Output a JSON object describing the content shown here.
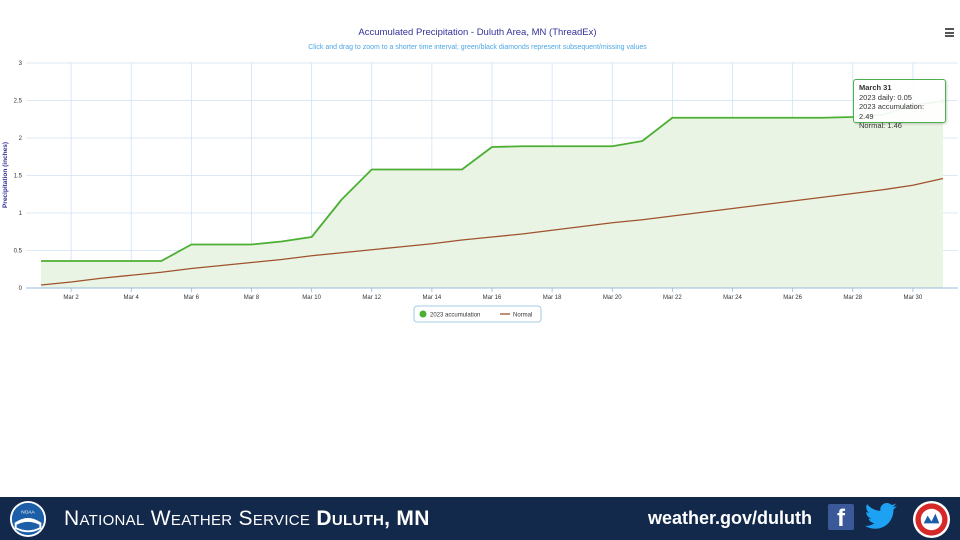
{
  "chart_data": {
    "type": "line",
    "title": "Accumulated Precipitation - Duluth Area, MN (ThreadEx)",
    "subtitle": "Click and drag to zoom to a shorter time interval; green/black diamonds represent subsequent/missing values",
    "ylabel": "Precipitation (inches)",
    "ylim": [
      0,
      3
    ],
    "y_ticks": [
      "0",
      "0.5",
      "1",
      "1.5",
      "2",
      "2.5",
      "3"
    ],
    "x_ticks": [
      "Mar 2",
      "Mar 4",
      "Mar 6",
      "Mar 8",
      "Mar 10",
      "Mar 12",
      "Mar 14",
      "Mar 16",
      "Mar 18",
      "Mar 20",
      "Mar 22",
      "Mar 24",
      "Mar 26",
      "Mar 28",
      "Mar 30"
    ],
    "grid": true,
    "legend_placement": "bottom-center",
    "x": [
      1,
      2,
      3,
      4,
      5,
      6,
      7,
      8,
      9,
      10,
      11,
      12,
      13,
      14,
      15,
      16,
      17,
      18,
      19,
      20,
      21,
      22,
      23,
      24,
      25,
      26,
      27,
      28,
      29,
      30,
      31
    ],
    "series": [
      {
        "name": "2023 accumulation",
        "color": "#4caf33",
        "fill": "#e9f4e4",
        "values": [
          0.36,
          0.36,
          0.36,
          0.36,
          0.36,
          0.58,
          0.58,
          0.58,
          0.62,
          0.68,
          1.18,
          1.58,
          1.58,
          1.58,
          1.58,
          1.88,
          1.89,
          1.89,
          1.89,
          1.89,
          1.96,
          2.27,
          2.27,
          2.27,
          2.27,
          2.27,
          2.27,
          2.28,
          2.31,
          2.44,
          2.49
        ]
      },
      {
        "name": "Normal",
        "color": "#a0522d",
        "values": [
          0.04,
          0.08,
          0.13,
          0.17,
          0.21,
          0.26,
          0.3,
          0.34,
          0.38,
          0.43,
          0.47,
          0.51,
          0.55,
          0.59,
          0.64,
          0.68,
          0.72,
          0.77,
          0.82,
          0.87,
          0.91,
          0.96,
          1.01,
          1.06,
          1.11,
          1.16,
          1.21,
          1.26,
          1.31,
          1.37,
          1.46
        ]
      }
    ],
    "tooltip": {
      "date": "March 31",
      "lines": [
        "2023 daily: 0.05",
        "2023 accumulation: 2.49",
        "Normal: 1.46"
      ]
    }
  },
  "footer": {
    "office_prefix": "National Weather Service ",
    "office_name": "Duluth, MN",
    "website": "weather.gov/duluth",
    "noaa_logo_text": "NOAA",
    "background": "#13294b"
  }
}
